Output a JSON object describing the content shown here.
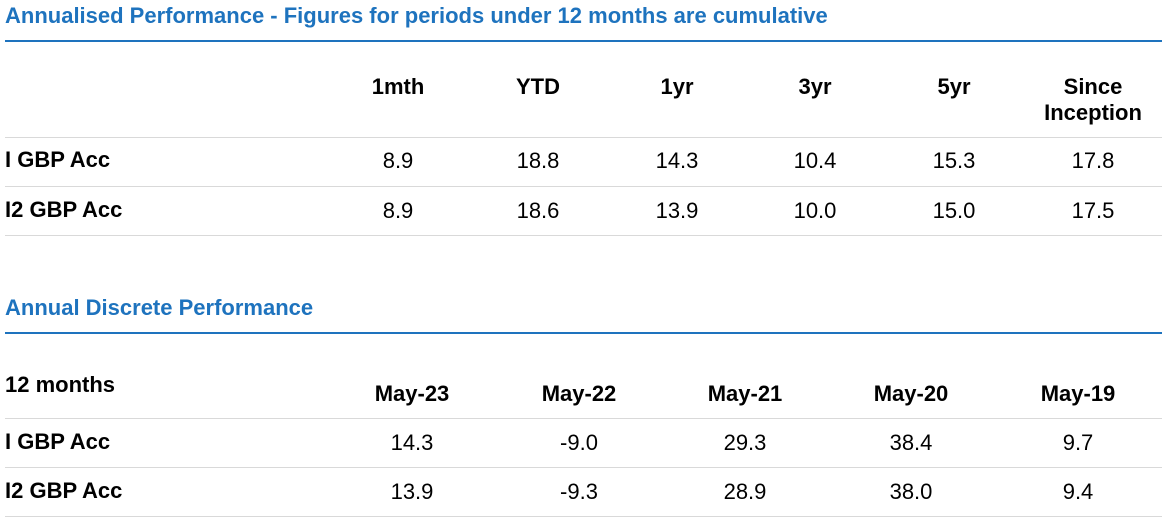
{
  "annualised": {
    "title": "Annualised Performance - Figures for periods under 12 months are cumulative",
    "headers": [
      "1mth",
      "YTD",
      "1yr",
      "3yr",
      "5yr",
      "Since Inception"
    ],
    "rows": [
      {
        "label": "I GBP Acc",
        "values": [
          "8.9",
          "18.8",
          "14.3",
          "10.4",
          "15.3",
          "17.8"
        ]
      },
      {
        "label": "I2 GBP Acc",
        "values": [
          "8.9",
          "18.6",
          "13.9",
          "10.0",
          "15.0",
          "17.5"
        ]
      }
    ]
  },
  "discrete": {
    "title": "Annual Discrete Performance",
    "corner_label": "12 months",
    "headers": [
      "May-23",
      "May-22",
      "May-21",
      "May-20",
      "May-19"
    ],
    "rows": [
      {
        "label": "I GBP Acc",
        "values": [
          "14.3",
          "-9.0",
          "29.3",
          "38.4",
          "9.7"
        ]
      },
      {
        "label": "I2 GBP Acc",
        "values": [
          "13.9",
          "-9.3",
          "28.9",
          "38.0",
          "9.4"
        ]
      }
    ]
  },
  "colors": {
    "title": "#1e73be",
    "rule": "#1e73be",
    "row_divider": "#d9d9d9",
    "text": "#000000"
  }
}
